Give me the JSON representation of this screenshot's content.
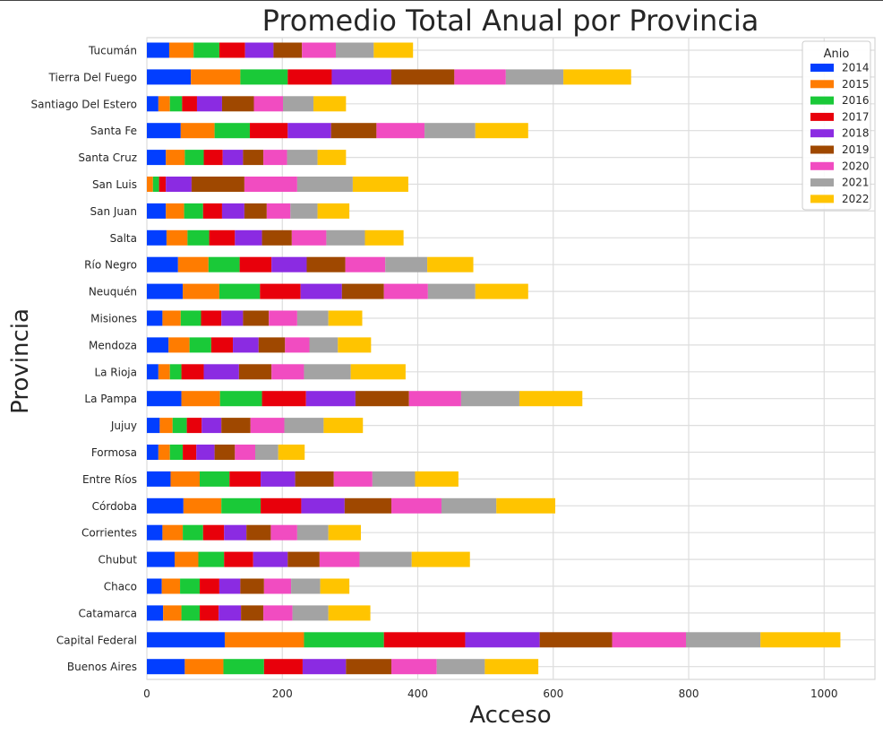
{
  "chart_data": {
    "type": "bar",
    "orientation": "horizontal",
    "stacked": true,
    "title": "Promedio Total Anual por Provincia",
    "xlabel": "Acceso",
    "ylabel": "Provincia",
    "xlim": [
      0,
      1075
    ],
    "xticks": [
      0,
      200,
      400,
      600,
      800,
      1000
    ],
    "grid": true,
    "legend": {
      "title": "Anio",
      "position": "top-right"
    },
    "categories": [
      "Tucumán",
      "Tierra Del Fuego",
      "Santiago Del Estero",
      "Santa Fe",
      "Santa Cruz",
      "San Luis",
      "San Juan",
      "Salta",
      "Río Negro",
      "Neuquén",
      "Misiones",
      "Mendoza",
      "La Rioja",
      "La Pampa",
      "Jujuy",
      "Formosa",
      "Entre Ríos",
      "Córdoba",
      "Corrientes",
      "Chubut",
      "Chaco",
      "Catamarca",
      "Capital Federal",
      "Buenos Aires"
    ],
    "series": [
      {
        "name": "2014",
        "color": "#023eff",
        "values": [
          33,
          65,
          17,
          50,
          28,
          0,
          28,
          29,
          46,
          53,
          23,
          32,
          17,
          51,
          19,
          17,
          35,
          54,
          23,
          41,
          22,
          24,
          115,
          56
        ]
      },
      {
        "name": "2015",
        "color": "#ff7c00",
        "values": [
          36,
          73,
          17,
          50,
          28,
          9,
          27,
          31,
          45,
          54,
          27,
          31,
          17,
          57,
          19,
          17,
          43,
          56,
          30,
          35,
          27,
          27,
          117,
          57
        ]
      },
      {
        "name": "2016",
        "color": "#1ac938",
        "values": [
          38,
          70,
          18,
          52,
          28,
          9,
          28,
          32,
          46,
          60,
          30,
          32,
          17,
          62,
          21,
          19,
          44,
          58,
          30,
          38,
          29,
          27,
          118,
          60
        ]
      },
      {
        "name": "2017",
        "color": "#e8000b",
        "values": [
          38,
          65,
          22,
          56,
          28,
          10,
          28,
          38,
          47,
          60,
          30,
          32,
          33,
          65,
          22,
          20,
          46,
          60,
          31,
          43,
          29,
          28,
          120,
          57
        ]
      },
      {
        "name": "2018",
        "color": "#8b2be2",
        "values": [
          42,
          88,
          37,
          64,
          30,
          38,
          33,
          40,
          52,
          61,
          32,
          38,
          52,
          73,
          29,
          27,
          51,
          64,
          33,
          51,
          31,
          33,
          110,
          64
        ]
      },
      {
        "name": "2019",
        "color": "#9f4800",
        "values": [
          42,
          93,
          47,
          67,
          30,
          78,
          33,
          44,
          57,
          62,
          38,
          39,
          48,
          79,
          43,
          30,
          57,
          69,
          36,
          47,
          35,
          33,
          107,
          67
        ]
      },
      {
        "name": "2020",
        "color": "#f14cc1",
        "values": [
          50,
          76,
          43,
          71,
          35,
          78,
          35,
          51,
          59,
          65,
          42,
          36,
          48,
          77,
          50,
          30,
          57,
          74,
          39,
          59,
          40,
          43,
          109,
          67
        ]
      },
      {
        "name": "2021",
        "color": "#a3a3a3",
        "values": [
          56,
          85,
          45,
          75,
          45,
          82,
          40,
          57,
          62,
          70,
          46,
          42,
          69,
          86,
          58,
          34,
          63,
          81,
          46,
          77,
          43,
          53,
          110,
          71
        ]
      },
      {
        "name": "2022",
        "color": "#ffc400",
        "values": [
          58,
          100,
          48,
          78,
          42,
          82,
          47,
          57,
          68,
          78,
          50,
          49,
          81,
          93,
          58,
          39,
          64,
          87,
          48,
          86,
          43,
          62,
          118,
          79
        ]
      }
    ]
  }
}
